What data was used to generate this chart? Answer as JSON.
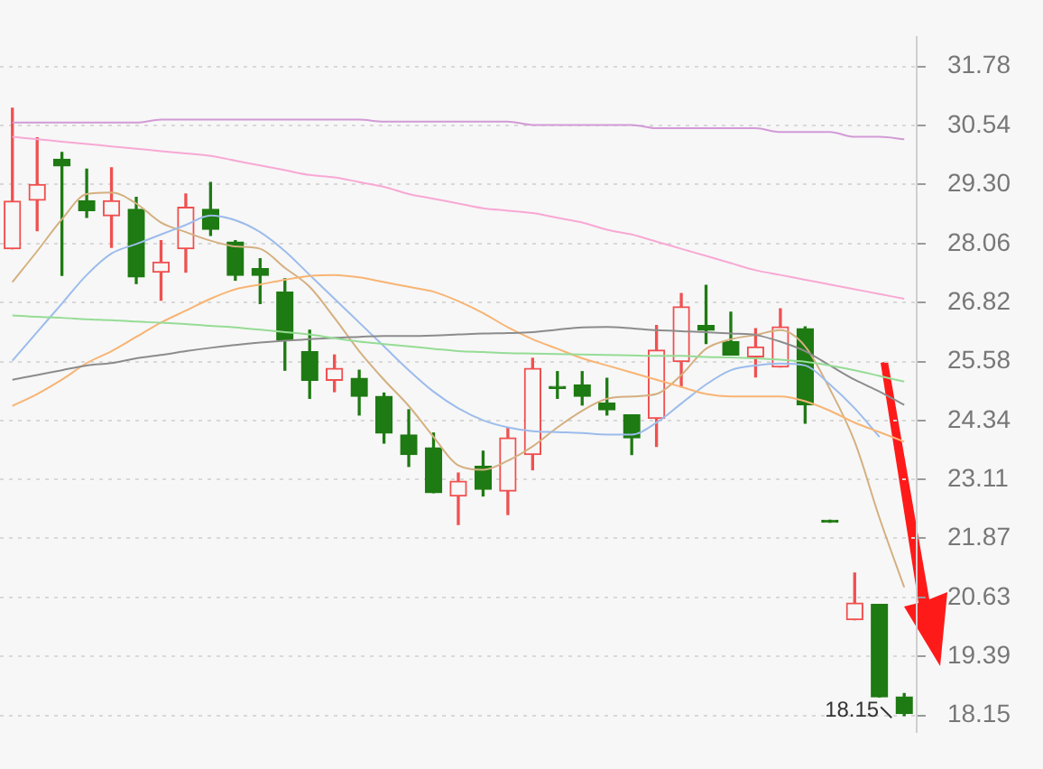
{
  "chart_data": {
    "type": "candlestick",
    "categories": [
      null,
      null,
      null,
      null,
      null,
      null,
      null,
      null,
      null,
      null,
      null,
      null,
      null,
      null,
      null,
      null,
      null,
      null,
      null,
      null,
      null,
      null,
      null,
      null,
      null,
      null,
      null,
      null,
      null,
      null,
      null,
      null,
      null,
      null,
      null,
      null,
      null
    ],
    "ohlc": [
      [
        27.95,
        30.9,
        27.95,
        28.95
      ],
      [
        28.97,
        30.28,
        28.33,
        29.3
      ],
      [
        29.83,
        29.97,
        27.39,
        29.69
      ],
      [
        28.96,
        29.62,
        28.61,
        28.75
      ],
      [
        28.64,
        29.65,
        27.98,
        28.96
      ],
      [
        28.78,
        29.03,
        27.22,
        27.36
      ],
      [
        27.46,
        28.12,
        26.87,
        27.67
      ],
      [
        27.95,
        29.1,
        27.46,
        28.82
      ],
      [
        28.78,
        29.34,
        28.23,
        28.36
      ],
      [
        28.09,
        28.12,
        27.29,
        27.39
      ],
      [
        27.53,
        27.74,
        26.8,
        27.39
      ],
      [
        27.04,
        27.32,
        25.4,
        26.03
      ],
      [
        25.79,
        26.24,
        24.81,
        25.19
      ],
      [
        25.19,
        25.72,
        24.95,
        25.44
      ],
      [
        25.23,
        25.4,
        24.46,
        24.85
      ],
      [
        24.85,
        24.92,
        23.87,
        24.08
      ],
      [
        24.04,
        24.57,
        23.38,
        23.63
      ],
      [
        23.77,
        24.08,
        22.83,
        22.83
      ],
      [
        22.76,
        23.24,
        22.16,
        23.07
      ],
      [
        23.38,
        23.7,
        22.76,
        22.9
      ],
      [
        22.86,
        24.18,
        22.37,
        23.98
      ],
      [
        23.63,
        25.65,
        23.31,
        25.44
      ],
      [
        25.05,
        25.37,
        24.81,
        25.02
      ],
      [
        25.09,
        25.37,
        24.67,
        24.85
      ],
      [
        24.71,
        25.23,
        24.46,
        24.57
      ],
      [
        24.46,
        24.46,
        23.63,
        23.98
      ],
      [
        24.39,
        26.34,
        23.8,
        25.82
      ],
      [
        25.58,
        27.01,
        25.05,
        26.73
      ],
      [
        26.34,
        27.18,
        25.96,
        26.24
      ],
      [
        26.0,
        26.62,
        25.72,
        25.72
      ],
      [
        25.68,
        26.27,
        25.26,
        25.89
      ],
      [
        25.47,
        26.69,
        25.47,
        26.31
      ],
      [
        26.27,
        26.31,
        24.29,
        24.67
      ],
      [
        22.21,
        22.21,
        22.21,
        22.21
      ],
      [
        20.16,
        21.14,
        20.16,
        20.51
      ],
      [
        20.48,
        20.48,
        18.54,
        18.54
      ],
      [
        18.54,
        18.61,
        18.15,
        18.19
      ]
    ],
    "colors": [
      "#f05050",
      "#f05050",
      "#1e7a12",
      "#1e7a12",
      "#f05050",
      "#1e7a12",
      "#f05050",
      "#f05050",
      "#1e7a12",
      "#1e7a12",
      "#1e7a12",
      "#1e7a12",
      "#1e7a12",
      "#f05050",
      "#1e7a12",
      "#1e7a12",
      "#1e7a12",
      "#1e7a12",
      "#f05050",
      "#1e7a12",
      "#f05050",
      "#f05050",
      "#1e7a12",
      "#1e7a12",
      "#1e7a12",
      "#1e7a12",
      "#f05050",
      "#f05050",
      "#1e7a12",
      "#1e7a12",
      "#f05050",
      "#f05050",
      "#1e7a12",
      "#1e7a12",
      "#f05050",
      "#1e7a12",
      "#1e7a12"
    ],
    "series": [
      {
        "type": "line",
        "color": "#d29ad6",
        "values": [
          30.6,
          30.6,
          30.6,
          30.6,
          30.6,
          30.6,
          30.66,
          30.66,
          30.66,
          30.66,
          30.66,
          30.66,
          30.66,
          30.66,
          30.66,
          30.62,
          30.62,
          30.62,
          30.62,
          30.62,
          30.62,
          30.55,
          30.55,
          30.55,
          30.55,
          30.55,
          30.48,
          30.48,
          30.48,
          30.48,
          30.48,
          30.4,
          30.4,
          30.4,
          30.3,
          30.3,
          30.25
        ]
      },
      {
        "type": "line",
        "color": "#f8a8d4",
        "values": [
          30.3,
          30.25,
          30.2,
          30.15,
          30.1,
          30.05,
          30.0,
          29.95,
          29.9,
          29.8,
          29.7,
          29.6,
          29.5,
          29.45,
          29.35,
          29.25,
          29.1,
          29.0,
          28.9,
          28.8,
          28.75,
          28.7,
          28.6,
          28.5,
          28.35,
          28.25,
          28.1,
          27.95,
          27.8,
          27.65,
          27.5,
          27.4,
          27.3,
          27.2,
          27.1,
          27.0,
          26.9
        ]
      },
      {
        "type": "line",
        "color": "#96dc96",
        "values": [
          26.55,
          26.52,
          26.5,
          26.47,
          26.45,
          26.42,
          26.4,
          26.37,
          26.33,
          26.3,
          26.25,
          26.2,
          26.15,
          26.07,
          26.0,
          25.95,
          25.9,
          25.85,
          25.8,
          25.78,
          25.76,
          25.75,
          25.74,
          25.73,
          25.72,
          25.71,
          25.7,
          25.7,
          25.68,
          25.67,
          25.65,
          25.62,
          25.58,
          25.5,
          25.4,
          25.28,
          25.16
        ]
      },
      {
        "type": "line",
        "color": "#8c8c8c",
        "values": [
          25.2,
          25.3,
          25.4,
          25.5,
          25.55,
          25.65,
          25.72,
          25.8,
          25.87,
          25.93,
          25.98,
          26.02,
          26.05,
          26.08,
          26.1,
          26.12,
          26.12,
          26.13,
          26.15,
          26.17,
          26.18,
          26.2,
          26.25,
          26.3,
          26.31,
          26.28,
          26.24,
          26.22,
          26.2,
          26.17,
          26.14,
          26.0,
          25.8,
          25.5,
          25.2,
          24.95,
          24.67
        ]
      },
      {
        "type": "line",
        "color": "#f8b474",
        "values": [
          24.65,
          24.9,
          25.2,
          25.55,
          25.8,
          26.1,
          26.4,
          26.65,
          26.9,
          27.1,
          27.2,
          27.3,
          27.38,
          27.4,
          27.35,
          27.25,
          27.15,
          27.05,
          26.85,
          26.6,
          26.3,
          26.05,
          25.85,
          25.65,
          25.5,
          25.35,
          25.2,
          25.05,
          24.9,
          24.85,
          24.85,
          24.85,
          24.75,
          24.55,
          24.3,
          24.1,
          23.9
        ]
      },
      {
        "type": "line",
        "color": "#9cbcec",
        "values": [
          25.6,
          26.2,
          26.8,
          27.4,
          27.85,
          28.05,
          28.25,
          28.45,
          28.65,
          28.55,
          28.3,
          27.9,
          27.4,
          26.9,
          26.4,
          25.9,
          25.4,
          24.95,
          24.6,
          24.35,
          24.2,
          24.12,
          24.1,
          24.08,
          24.05,
          24.05,
          24.3,
          24.7,
          25.1,
          25.4,
          25.5,
          25.54,
          25.5,
          25.1,
          24.6,
          24.0,
          null
        ]
      },
      {
        "type": "line",
        "color": "#d4b080",
        "values": [
          27.25,
          27.9,
          28.57,
          29.1,
          29.13,
          28.9,
          28.5,
          28.3,
          28.12,
          28.0,
          27.95,
          27.55,
          27.15,
          26.5,
          25.8,
          25.2,
          24.65,
          24.0,
          23.4,
          23.31,
          23.5,
          23.8,
          24.2,
          24.55,
          24.8,
          24.85,
          24.9,
          25.3,
          25.85,
          26.05,
          26.14,
          26.24,
          25.9,
          25.0,
          23.9,
          22.3,
          20.84
        ]
      }
    ],
    "ylim": [
      17.8,
      32.4
    ],
    "yticks": [
      {
        "value": 18.15,
        "label": "18.15"
      },
      {
        "value": 19.39,
        "label": "19.39"
      },
      {
        "value": 20.63,
        "label": "20.63"
      },
      {
        "value": 21.87,
        "label": "21.87"
      },
      {
        "value": 23.11,
        "label": "23.11"
      },
      {
        "value": 24.34,
        "label": "24.34"
      },
      {
        "value": 25.58,
        "label": "25.58"
      },
      {
        "value": 26.82,
        "label": "26.82"
      },
      {
        "value": 28.06,
        "label": "28.06"
      },
      {
        "value": 29.3,
        "label": "29.30"
      },
      {
        "value": 30.54,
        "label": "30.54"
      },
      {
        "value": 31.78,
        "label": "31.78"
      }
    ],
    "grid": "y",
    "tick_labels": "y",
    "annotations": [
      "18.15"
    ]
  }
}
